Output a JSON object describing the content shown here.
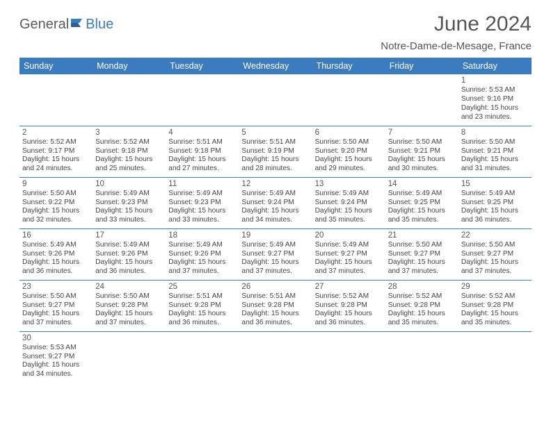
{
  "logo": {
    "part1": "General",
    "part2": "Blue"
  },
  "title": "June 2024",
  "location": "Notre-Dame-de-Mesage, France",
  "theme": {
    "header_bg": "#3b7bbf",
    "text": "#555555",
    "cell_text": "#444444"
  },
  "day_headers": [
    "Sunday",
    "Monday",
    "Tuesday",
    "Wednesday",
    "Thursday",
    "Friday",
    "Saturday"
  ],
  "weeks": [
    [
      null,
      null,
      null,
      null,
      null,
      null,
      {
        "n": "1",
        "sr": "Sunrise: 5:53 AM",
        "ss": "Sunset: 9:16 PM",
        "dl1": "Daylight: 15 hours",
        "dl2": "and 23 minutes."
      }
    ],
    [
      {
        "n": "2",
        "sr": "Sunrise: 5:52 AM",
        "ss": "Sunset: 9:17 PM",
        "dl1": "Daylight: 15 hours",
        "dl2": "and 24 minutes."
      },
      {
        "n": "3",
        "sr": "Sunrise: 5:52 AM",
        "ss": "Sunset: 9:18 PM",
        "dl1": "Daylight: 15 hours",
        "dl2": "and 25 minutes."
      },
      {
        "n": "4",
        "sr": "Sunrise: 5:51 AM",
        "ss": "Sunset: 9:18 PM",
        "dl1": "Daylight: 15 hours",
        "dl2": "and 27 minutes."
      },
      {
        "n": "5",
        "sr": "Sunrise: 5:51 AM",
        "ss": "Sunset: 9:19 PM",
        "dl1": "Daylight: 15 hours",
        "dl2": "and 28 minutes."
      },
      {
        "n": "6",
        "sr": "Sunrise: 5:50 AM",
        "ss": "Sunset: 9:20 PM",
        "dl1": "Daylight: 15 hours",
        "dl2": "and 29 minutes."
      },
      {
        "n": "7",
        "sr": "Sunrise: 5:50 AM",
        "ss": "Sunset: 9:21 PM",
        "dl1": "Daylight: 15 hours",
        "dl2": "and 30 minutes."
      },
      {
        "n": "8",
        "sr": "Sunrise: 5:50 AM",
        "ss": "Sunset: 9:21 PM",
        "dl1": "Daylight: 15 hours",
        "dl2": "and 31 minutes."
      }
    ],
    [
      {
        "n": "9",
        "sr": "Sunrise: 5:50 AM",
        "ss": "Sunset: 9:22 PM",
        "dl1": "Daylight: 15 hours",
        "dl2": "and 32 minutes."
      },
      {
        "n": "10",
        "sr": "Sunrise: 5:49 AM",
        "ss": "Sunset: 9:23 PM",
        "dl1": "Daylight: 15 hours",
        "dl2": "and 33 minutes."
      },
      {
        "n": "11",
        "sr": "Sunrise: 5:49 AM",
        "ss": "Sunset: 9:23 PM",
        "dl1": "Daylight: 15 hours",
        "dl2": "and 33 minutes."
      },
      {
        "n": "12",
        "sr": "Sunrise: 5:49 AM",
        "ss": "Sunset: 9:24 PM",
        "dl1": "Daylight: 15 hours",
        "dl2": "and 34 minutes."
      },
      {
        "n": "13",
        "sr": "Sunrise: 5:49 AM",
        "ss": "Sunset: 9:24 PM",
        "dl1": "Daylight: 15 hours",
        "dl2": "and 35 minutes."
      },
      {
        "n": "14",
        "sr": "Sunrise: 5:49 AM",
        "ss": "Sunset: 9:25 PM",
        "dl1": "Daylight: 15 hours",
        "dl2": "and 35 minutes."
      },
      {
        "n": "15",
        "sr": "Sunrise: 5:49 AM",
        "ss": "Sunset: 9:25 PM",
        "dl1": "Daylight: 15 hours",
        "dl2": "and 36 minutes."
      }
    ],
    [
      {
        "n": "16",
        "sr": "Sunrise: 5:49 AM",
        "ss": "Sunset: 9:26 PM",
        "dl1": "Daylight: 15 hours",
        "dl2": "and 36 minutes."
      },
      {
        "n": "17",
        "sr": "Sunrise: 5:49 AM",
        "ss": "Sunset: 9:26 PM",
        "dl1": "Daylight: 15 hours",
        "dl2": "and 36 minutes."
      },
      {
        "n": "18",
        "sr": "Sunrise: 5:49 AM",
        "ss": "Sunset: 9:26 PM",
        "dl1": "Daylight: 15 hours",
        "dl2": "and 37 minutes."
      },
      {
        "n": "19",
        "sr": "Sunrise: 5:49 AM",
        "ss": "Sunset: 9:27 PM",
        "dl1": "Daylight: 15 hours",
        "dl2": "and 37 minutes."
      },
      {
        "n": "20",
        "sr": "Sunrise: 5:49 AM",
        "ss": "Sunset: 9:27 PM",
        "dl1": "Daylight: 15 hours",
        "dl2": "and 37 minutes."
      },
      {
        "n": "21",
        "sr": "Sunrise: 5:50 AM",
        "ss": "Sunset: 9:27 PM",
        "dl1": "Daylight: 15 hours",
        "dl2": "and 37 minutes."
      },
      {
        "n": "22",
        "sr": "Sunrise: 5:50 AM",
        "ss": "Sunset: 9:27 PM",
        "dl1": "Daylight: 15 hours",
        "dl2": "and 37 minutes."
      }
    ],
    [
      {
        "n": "23",
        "sr": "Sunrise: 5:50 AM",
        "ss": "Sunset: 9:27 PM",
        "dl1": "Daylight: 15 hours",
        "dl2": "and 37 minutes."
      },
      {
        "n": "24",
        "sr": "Sunrise: 5:50 AM",
        "ss": "Sunset: 9:28 PM",
        "dl1": "Daylight: 15 hours",
        "dl2": "and 37 minutes."
      },
      {
        "n": "25",
        "sr": "Sunrise: 5:51 AM",
        "ss": "Sunset: 9:28 PM",
        "dl1": "Daylight: 15 hours",
        "dl2": "and 36 minutes."
      },
      {
        "n": "26",
        "sr": "Sunrise: 5:51 AM",
        "ss": "Sunset: 9:28 PM",
        "dl1": "Daylight: 15 hours",
        "dl2": "and 36 minutes."
      },
      {
        "n": "27",
        "sr": "Sunrise: 5:52 AM",
        "ss": "Sunset: 9:28 PM",
        "dl1": "Daylight: 15 hours",
        "dl2": "and 36 minutes."
      },
      {
        "n": "28",
        "sr": "Sunrise: 5:52 AM",
        "ss": "Sunset: 9:28 PM",
        "dl1": "Daylight: 15 hours",
        "dl2": "and 35 minutes."
      },
      {
        "n": "29",
        "sr": "Sunrise: 5:52 AM",
        "ss": "Sunset: 9:28 PM",
        "dl1": "Daylight: 15 hours",
        "dl2": "and 35 minutes."
      }
    ],
    [
      {
        "n": "30",
        "sr": "Sunrise: 5:53 AM",
        "ss": "Sunset: 9:27 PM",
        "dl1": "Daylight: 15 hours",
        "dl2": "and 34 minutes."
      },
      null,
      null,
      null,
      null,
      null,
      null
    ]
  ]
}
